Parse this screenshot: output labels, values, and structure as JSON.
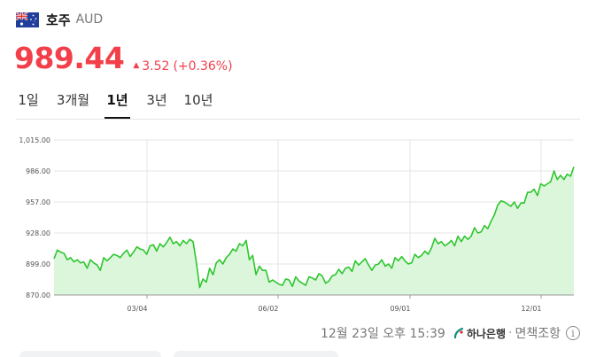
{
  "header": {
    "flag_icon": "australia-flag-icon",
    "currency_name": "호주",
    "currency_code": "AUD"
  },
  "price": {
    "value": "989.44",
    "change": "3.52",
    "change_percent": "(+0.36%)",
    "direction": "up",
    "color": "#f23f4a"
  },
  "tabs": [
    {
      "label": "1일",
      "active": false
    },
    {
      "label": "3개월",
      "active": false
    },
    {
      "label": "1년",
      "active": true
    },
    {
      "label": "3년",
      "active": false
    },
    {
      "label": "10년",
      "active": false
    }
  ],
  "chart_data": {
    "type": "area",
    "y_ticks": [
      "1,015.00",
      "986.00",
      "957.00",
      "928.00",
      "899.00",
      "870.00"
    ],
    "ylim": [
      870,
      1015
    ],
    "x_ticks": [
      "03/04",
      "06/02",
      "09/01",
      "12/01"
    ],
    "grid": true,
    "line_color": "#2ec62e",
    "fill_color": "#dcf6dc",
    "series": [
      {
        "values": [
          904,
          912,
          910,
          909,
          903,
          905,
          901,
          903,
          900,
          901,
          895,
          903,
          900,
          898,
          893,
          905,
          902,
          905,
          908,
          907,
          905,
          909,
          912,
          906,
          910,
          915,
          913,
          912,
          908,
          916,
          917,
          911,
          918,
          915,
          919,
          924,
          918,
          920,
          916,
          921,
          918,
          922,
          920,
          900,
          877,
          885,
          882,
          895,
          889,
          900,
          903,
          899,
          905,
          908,
          913,
          911,
          918,
          916,
          921,
          903,
          907,
          889,
          897,
          893,
          893,
          882,
          884,
          882,
          880,
          879,
          885,
          884,
          878,
          887,
          883,
          881,
          879,
          887,
          886,
          884,
          890,
          888,
          881,
          883,
          888,
          889,
          894,
          890,
          895,
          896,
          892,
          902,
          898,
          901,
          904,
          898,
          893,
          898,
          899,
          903,
          897,
          899,
          895,
          905,
          902,
          906,
          902,
          899,
          900,
          908,
          905,
          907,
          911,
          908,
          914,
          923,
          918,
          920,
          916,
          918,
          921,
          916,
          925,
          920,
          925,
          922,
          925,
          933,
          928,
          929,
          935,
          932,
          939,
          945,
          954,
          958,
          957,
          955,
          953,
          957,
          951,
          956,
          956,
          966,
          966,
          969,
          963,
          974,
          972,
          974,
          976,
          986,
          978,
          982,
          978,
          983,
          981,
          990
        ]
      }
    ]
  },
  "footer": {
    "timestamp": "12월 23일 오후 15:39",
    "source": "하나은행",
    "separator": "·",
    "disclaimer": "면책조항",
    "info_icon": "info-icon"
  }
}
